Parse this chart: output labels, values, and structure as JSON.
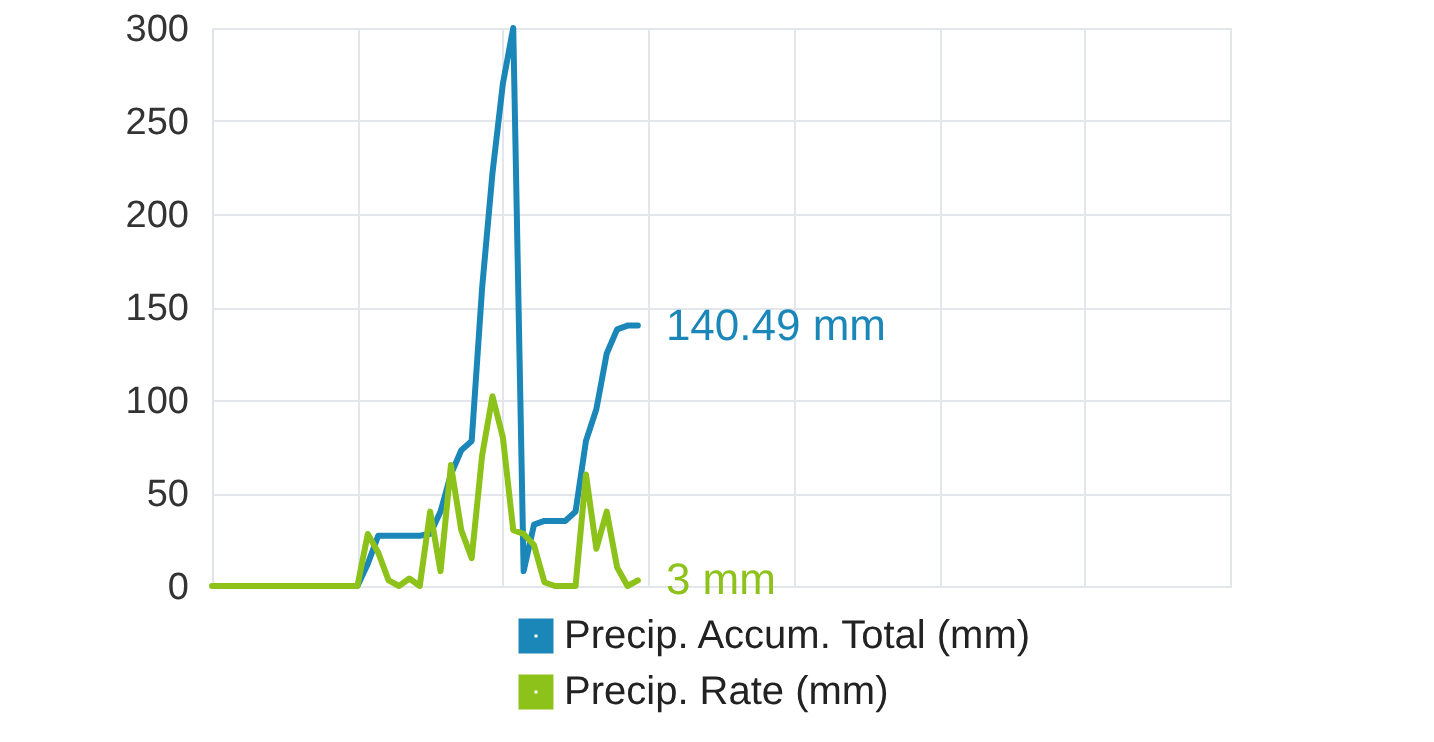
{
  "chart_data": {
    "type": "line",
    "categories": [
      null,
      null,
      null,
      null,
      null,
      null,
      null,
      null,
      null,
      null,
      null,
      null,
      null,
      null,
      null,
      null,
      null,
      null,
      null,
      null,
      null,
      null,
      null,
      null,
      null,
      null,
      null,
      null,
      null,
      null,
      null,
      null,
      null,
      null,
      null,
      null,
      null,
      null,
      null,
      null,
      null,
      null,
      null,
      null,
      null,
      null,
      null,
      null,
      null,
      null,
      null,
      null,
      null,
      null,
      null,
      null,
      null,
      null,
      null,
      null,
      null,
      null,
      null,
      null,
      null,
      null,
      null,
      null,
      null,
      null,
      null,
      null,
      null,
      null,
      null,
      null,
      null,
      null,
      null,
      null,
      null,
      null,
      null,
      null,
      null,
      null,
      null,
      null,
      null,
      null,
      null,
      null,
      null,
      null,
      null,
      null,
      null,
      null,
      null
    ],
    "series": [
      {
        "name": "Precip. Accum. Total (mm)",
        "color": "#1b87b8",
        "values": [
          null,
          null,
          null,
          null,
          null,
          null,
          null,
          null,
          null,
          null,
          null,
          null,
          null,
          0,
          0,
          12,
          27,
          27,
          27,
          27,
          27,
          28,
          40,
          60,
          73,
          78,
          160,
          222,
          270,
          300,
          8,
          33,
          35,
          35,
          35,
          40,
          78,
          95,
          125,
          138,
          140,
          140,
          null,
          null,
          null,
          null,
          null,
          null,
          null,
          null,
          null,
          null,
          null,
          null,
          null,
          null,
          null,
          null,
          null,
          null,
          null,
          null,
          null,
          null,
          null,
          null,
          null,
          null,
          null,
          null,
          null,
          null,
          null,
          null,
          null,
          null,
          null,
          null,
          null,
          null,
          null,
          null,
          null,
          null,
          null,
          null,
          null,
          null,
          null,
          null,
          null,
          null,
          null,
          null,
          null,
          null,
          null,
          null,
          null
        ]
      },
      {
        "name": "Precip. Rate (mm)",
        "color": "#8cc21a",
        "values": [
          0,
          0,
          0,
          0,
          0,
          0,
          0,
          0,
          0,
          0,
          0,
          0,
          0,
          0,
          0,
          28,
          18,
          3,
          0,
          4,
          0,
          40,
          8,
          65,
          30,
          15,
          70,
          102,
          80,
          30,
          28,
          22,
          2,
          0,
          0,
          0,
          60,
          20,
          40,
          10,
          0,
          3,
          null,
          null,
          null,
          null,
          null,
          null,
          null,
          null,
          null,
          null,
          null,
          null,
          null,
          null,
          null,
          null,
          null,
          null,
          null,
          null,
          null,
          null,
          null,
          null,
          null,
          null,
          null,
          null,
          null,
          null,
          null,
          null,
          null,
          null,
          null,
          null,
          null,
          null,
          null,
          null,
          null,
          null,
          null,
          null,
          null,
          null,
          null,
          null,
          null,
          null,
          null,
          null,
          null,
          null,
          null,
          null,
          null
        ]
      }
    ],
    "ylim": [
      0,
      300
    ],
    "yticks": [
      0,
      50,
      100,
      150,
      200,
      250,
      300
    ],
    "grid": true,
    "tick_labels": "y",
    "legend": "bottom right",
    "annotations": [
      "140.49 mm",
      "3 mm"
    ]
  }
}
